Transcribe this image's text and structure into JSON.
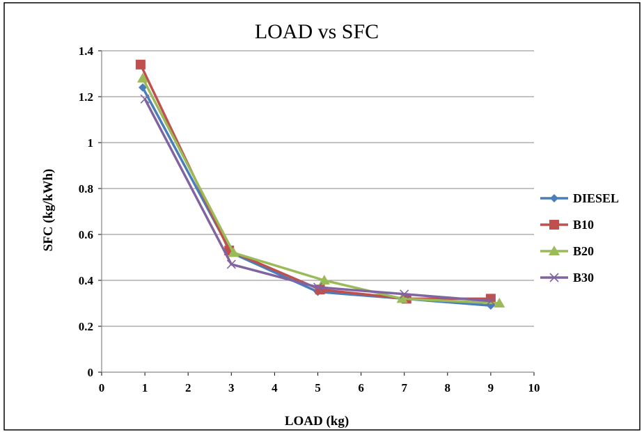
{
  "chart_data": {
    "type": "line",
    "title": "LOAD vs SFC",
    "xlabel": "LOAD (kg)",
    "ylabel": "SFC (kg/kWh)",
    "xlim": [
      0,
      10
    ],
    "ylim": [
      0,
      1.4
    ],
    "x_ticks": [
      "0",
      "1",
      "2",
      "3",
      "4",
      "5",
      "6",
      "7",
      "8",
      "9",
      "10"
    ],
    "y_ticks": [
      "0",
      "0.2",
      "0.4",
      "0.6",
      "0.8",
      "1",
      "1.2",
      "1.4"
    ],
    "grid": "horizontal",
    "legend_position": "right",
    "series": [
      {
        "name": "DIESEL",
        "color": "#4a7ebb",
        "marker": "diamond",
        "points": [
          [
            0.95,
            1.24
          ],
          [
            3.0,
            0.52
          ],
          [
            5.0,
            0.35
          ],
          [
            7.0,
            0.32
          ],
          [
            9.0,
            0.29
          ]
        ]
      },
      {
        "name": "B10",
        "color": "#c0504d",
        "marker": "square",
        "points": [
          [
            0.9,
            1.34
          ],
          [
            2.95,
            0.53
          ],
          [
            5.05,
            0.36
          ],
          [
            7.05,
            0.32
          ],
          [
            9.0,
            0.32
          ]
        ]
      },
      {
        "name": "B20",
        "color": "#9bbb59",
        "marker": "triangle",
        "points": [
          [
            0.95,
            1.28
          ],
          [
            3.05,
            0.52
          ],
          [
            5.15,
            0.4
          ],
          [
            6.95,
            0.32
          ],
          [
            9.2,
            0.3
          ]
        ]
      },
      {
        "name": "B30",
        "color": "#8064a2",
        "marker": "x",
        "points": [
          [
            1.0,
            1.19
          ],
          [
            3.0,
            0.47
          ],
          [
            5.0,
            0.37
          ],
          [
            7.0,
            0.34
          ],
          [
            9.0,
            0.31
          ]
        ]
      }
    ]
  }
}
